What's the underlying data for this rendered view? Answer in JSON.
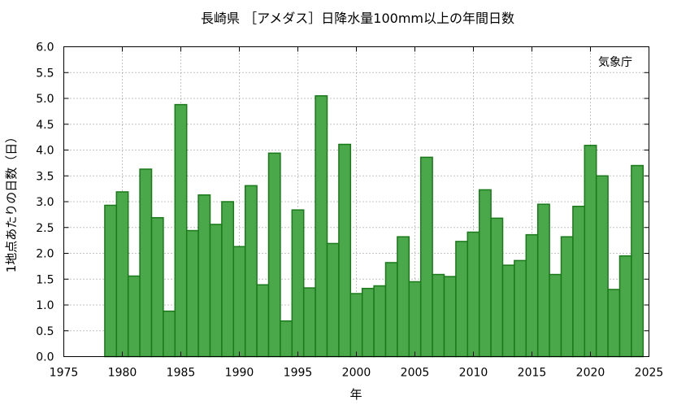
{
  "chart_data": {
    "type": "bar",
    "title": "長崎県 ［アメダス］日降水量100mm以上の年間日数",
    "xlabel": "年",
    "ylabel": "1地点あたりの日数（日）",
    "credit": "気象庁",
    "xlim": [
      1975,
      2025
    ],
    "ylim": [
      0,
      6
    ],
    "xticks": [
      1975,
      1980,
      1985,
      1990,
      1995,
      2000,
      2005,
      2010,
      2015,
      2020,
      2025
    ],
    "yticks": [
      0.0,
      0.5,
      1.0,
      1.5,
      2.0,
      2.5,
      3.0,
      3.5,
      4.0,
      4.5,
      5.0,
      5.5,
      6.0
    ],
    "grid": true,
    "bar_color": "#4aa84a",
    "bar_edge_color": "#1a7a1a",
    "x": [
      1979,
      1980,
      1981,
      1982,
      1983,
      1984,
      1985,
      1986,
      1987,
      1988,
      1989,
      1990,
      1991,
      1992,
      1993,
      1994,
      1995,
      1996,
      1997,
      1998,
      1999,
      2000,
      2001,
      2002,
      2003,
      2004,
      2005,
      2006,
      2007,
      2008,
      2009,
      2010,
      2011,
      2012,
      2013,
      2014,
      2015,
      2016,
      2017,
      2018,
      2019,
      2020,
      2021,
      2022,
      2023,
      2024
    ],
    "values": [
      2.93,
      3.19,
      1.56,
      3.63,
      2.69,
      0.88,
      4.88,
      2.44,
      3.13,
      2.56,
      3.0,
      2.13,
      3.31,
      1.39,
      3.94,
      0.69,
      2.84,
      1.33,
      5.05,
      2.19,
      4.11,
      1.22,
      1.32,
      1.37,
      1.82,
      2.32,
      1.45,
      3.86,
      1.59,
      1.55,
      2.23,
      2.41,
      3.23,
      2.68,
      1.77,
      1.86,
      2.36,
      2.95,
      1.59,
      2.32,
      2.91,
      4.09,
      3.5,
      1.3,
      1.95,
      3.7
    ]
  }
}
